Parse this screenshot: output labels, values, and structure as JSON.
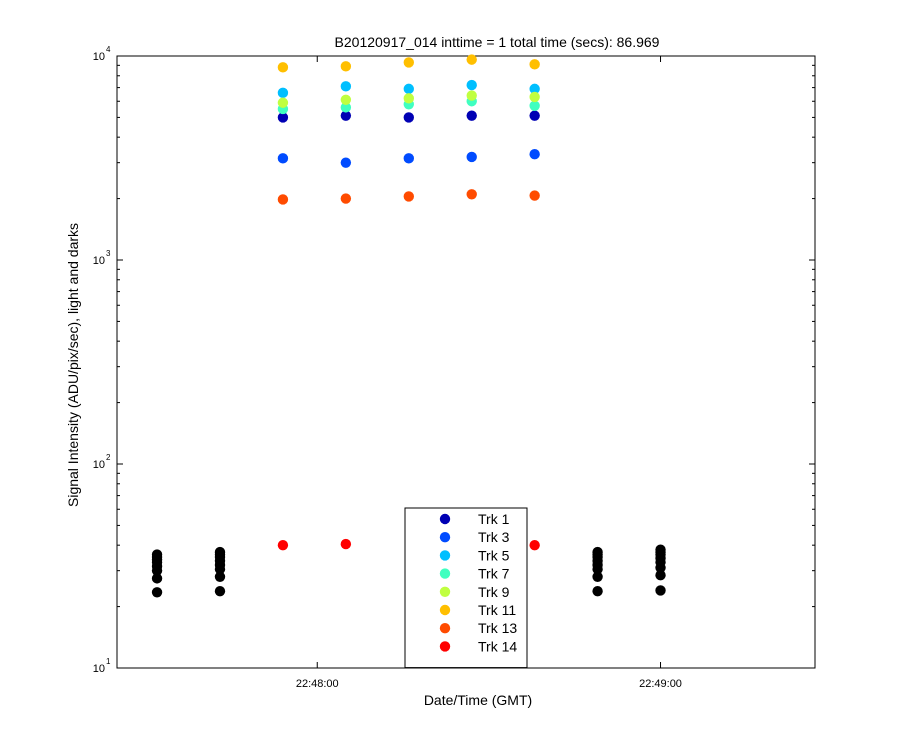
{
  "chart_data": {
    "type": "scatter",
    "title": "B20120917_014 inttime = 1 total time (secs): 86.969",
    "xlabel": "Date/Time (GMT)",
    "ylabel": "Signal Intensity (ADU/pix/sec), light and darks",
    "y_scale": "log",
    "ylim": [
      10,
      10000
    ],
    "xlim": [
      "22:47:25",
      "22:49:27"
    ],
    "x_ticks": [
      "22:48:00",
      "22:49:00"
    ],
    "y_ticks": [
      {
        "base": "10",
        "exp": "1"
      },
      {
        "base": "10",
        "exp": "2"
      },
      {
        "base": "10",
        "exp": "3"
      },
      {
        "base": "10",
        "exp": "4"
      }
    ],
    "legend_position": "bottom-center",
    "series": [
      {
        "name": "Trk 1",
        "color": "#0000b4",
        "points": [
          [
            "22:47:54",
            5000
          ],
          [
            "22:48:05",
            5100
          ],
          [
            "22:48:16",
            5000
          ],
          [
            "22:48:27",
            5100
          ],
          [
            "22:48:38",
            5100
          ]
        ]
      },
      {
        "name": "Trk 3",
        "color": "#004bff",
        "points": [
          [
            "22:47:54",
            3150
          ],
          [
            "22:48:05",
            3000
          ],
          [
            "22:48:16",
            3150
          ],
          [
            "22:48:27",
            3200
          ],
          [
            "22:48:38",
            3300
          ]
        ]
      },
      {
        "name": "Trk 5",
        "color": "#00bfff",
        "points": [
          [
            "22:47:54",
            6600
          ],
          [
            "22:48:05",
            7100
          ],
          [
            "22:48:16",
            6900
          ],
          [
            "22:48:27",
            7200
          ],
          [
            "22:48:38",
            6900
          ]
        ]
      },
      {
        "name": "Trk 7",
        "color": "#40ffc0",
        "points": [
          [
            "22:47:54",
            5500
          ],
          [
            "22:48:05",
            5600
          ],
          [
            "22:48:16",
            5800
          ],
          [
            "22:48:27",
            6000
          ],
          [
            "22:48:38",
            5700
          ]
        ]
      },
      {
        "name": "Trk 9",
        "color": "#c0ff40",
        "points": [
          [
            "22:47:54",
            5900
          ],
          [
            "22:48:05",
            6100
          ],
          [
            "22:48:16",
            6200
          ],
          [
            "22:48:27",
            6400
          ],
          [
            "22:48:38",
            6300
          ]
        ]
      },
      {
        "name": "Trk 11",
        "color": "#ffbf00",
        "points": [
          [
            "22:47:54",
            8800
          ],
          [
            "22:48:05",
            8900
          ],
          [
            "22:48:16",
            9300
          ],
          [
            "22:48:27",
            9600
          ],
          [
            "22:48:38",
            9100
          ]
        ]
      },
      {
        "name": "Trk 13",
        "color": "#ff4b00",
        "points": [
          [
            "22:47:54",
            1980
          ],
          [
            "22:48:05",
            2000
          ],
          [
            "22:48:16",
            2050
          ],
          [
            "22:48:27",
            2100
          ],
          [
            "22:48:38",
            2070
          ]
        ]
      },
      {
        "name": "Trk 14",
        "color": "#ff0000",
        "points": [
          [
            "22:47:54",
            40
          ],
          [
            "22:48:05",
            40.5
          ],
          [
            "22:48:38",
            40
          ]
        ]
      }
    ],
    "darks": {
      "color": "#000000",
      "points": [
        [
          "22:47:32",
          23.5
        ],
        [
          "22:47:32",
          27.5
        ],
        [
          "22:47:32",
          30
        ],
        [
          "22:47:32",
          31.5
        ],
        [
          "22:47:32",
          33
        ],
        [
          "22:47:32",
          34
        ],
        [
          "22:47:32",
          35
        ],
        [
          "22:47:32",
          36
        ],
        [
          "22:47:43",
          23.8
        ],
        [
          "22:47:43",
          28
        ],
        [
          "22:47:43",
          30.5
        ],
        [
          "22:47:43",
          32
        ],
        [
          "22:47:43",
          33.5
        ],
        [
          "22:47:43",
          35
        ],
        [
          "22:47:43",
          36
        ],
        [
          "22:47:43",
          37
        ],
        [
          "22:48:49",
          23.8
        ],
        [
          "22:48:49",
          28
        ],
        [
          "22:48:49",
          30.5
        ],
        [
          "22:48:49",
          32
        ],
        [
          "22:48:49",
          33.5
        ],
        [
          "22:48:49",
          35
        ],
        [
          "22:48:49",
          36
        ],
        [
          "22:48:49",
          37
        ],
        [
          "22:49:00",
          24
        ],
        [
          "22:49:00",
          28.5
        ],
        [
          "22:49:00",
          31
        ],
        [
          "22:49:00",
          33
        ],
        [
          "22:49:00",
          34.5
        ],
        [
          "22:49:00",
          36
        ],
        [
          "22:49:00",
          37
        ],
        [
          "22:49:00",
          38
        ]
      ]
    }
  }
}
